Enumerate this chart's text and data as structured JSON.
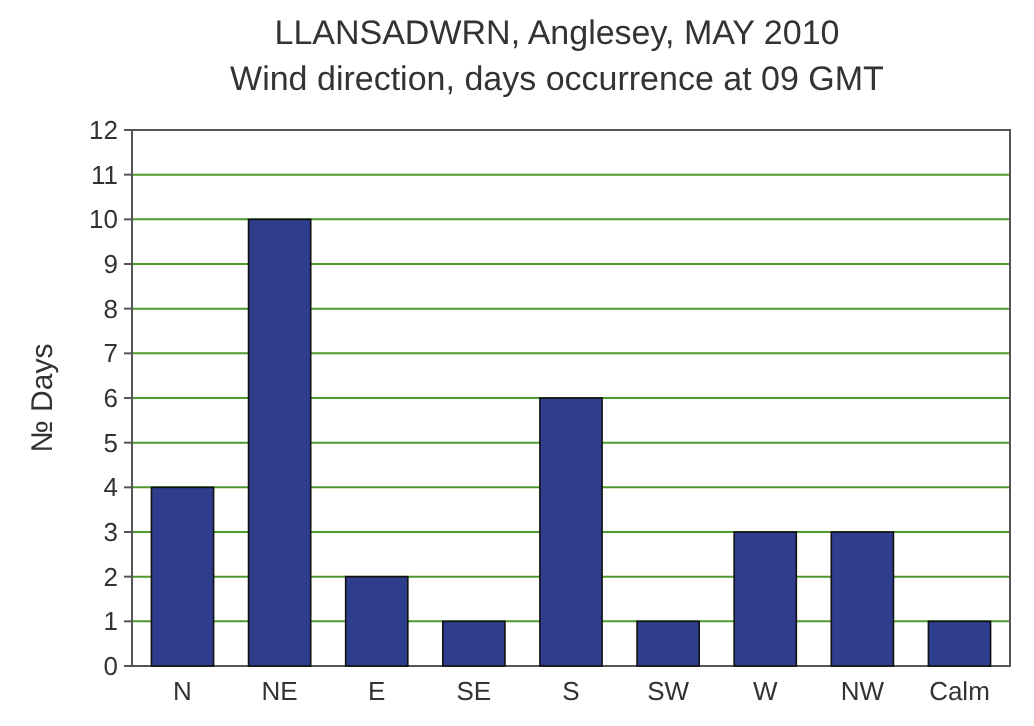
{
  "chart_data": {
    "type": "bar",
    "title": "LLANSADWRN, Anglesey, MAY 2010",
    "subtitle": "Wind direction, days occurrence at 09 GMT",
    "ylabel": "№ Days",
    "categories": [
      "N",
      "NE",
      "E",
      "SE",
      "S",
      "SW",
      "W",
      "NW",
      "Calm"
    ],
    "values": [
      4,
      10,
      2,
      1,
      6,
      1,
      3,
      3,
      1
    ],
    "color": "#2e3d8c",
    "ylim": [
      0,
      12
    ],
    "yticks": [
      0,
      1,
      2,
      3,
      4,
      5,
      6,
      7,
      8,
      9,
      10,
      11,
      12
    ],
    "grid": "y"
  }
}
